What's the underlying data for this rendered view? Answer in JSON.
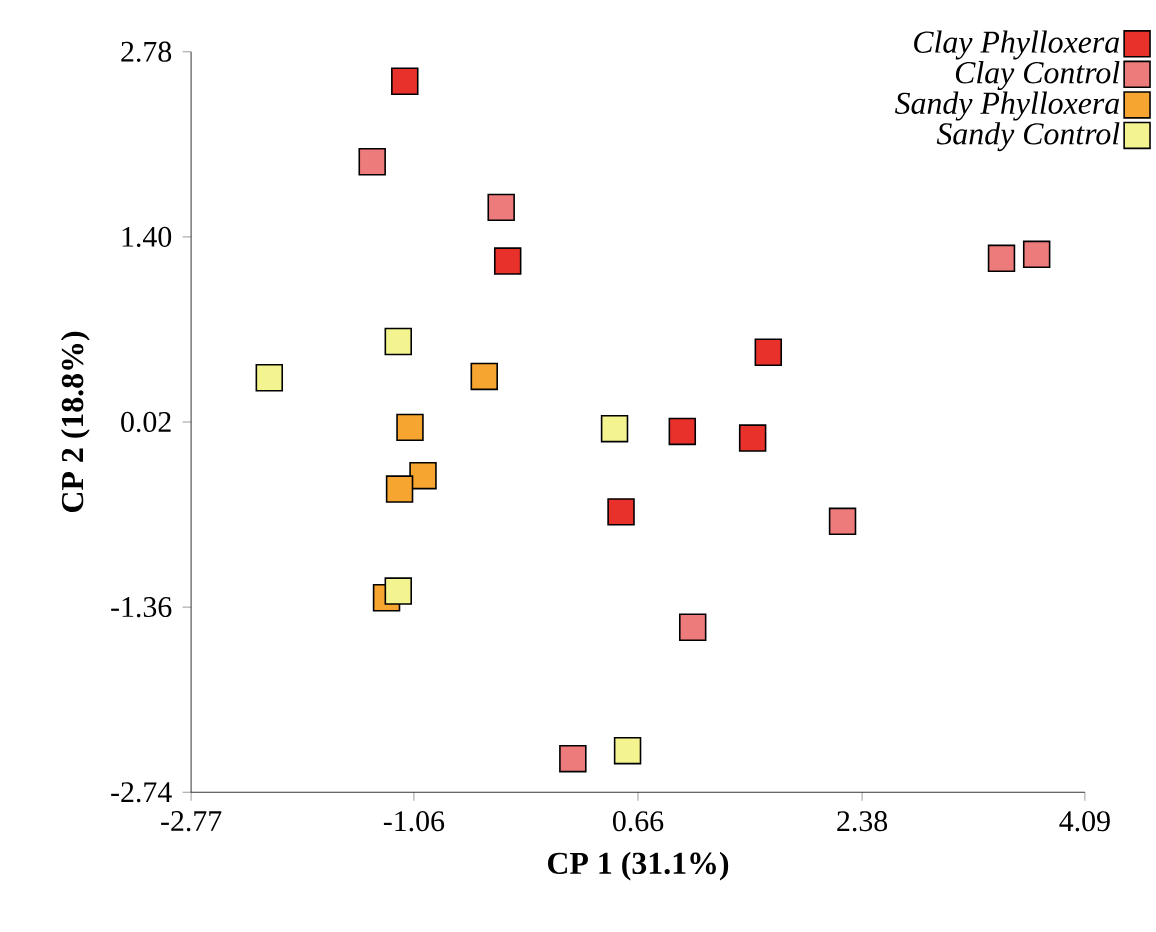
{
  "chart_data": {
    "type": "scatter",
    "xlabel": "CP 1 (31.1%)",
    "ylabel": "CP 2 (18.8%)",
    "xlim": [
      -2.77,
      4.09
    ],
    "ylim": [
      -2.74,
      2.78
    ],
    "xticks": [
      -2.77,
      -1.06,
      0.66,
      2.38,
      4.09
    ],
    "yticks": [
      -2.74,
      -1.36,
      0.02,
      {
        "value": 1.4,
        "label": "1.40"
      },
      2.78
    ],
    "grid": false,
    "legend": "top right",
    "marker": "square",
    "series": [
      {
        "name": "Clay Phylloxera",
        "color": "#e8312b",
        "x": [
          -1.13,
          -0.34,
          1.66,
          1.0,
          1.54,
          0.53
        ],
        "values": [
          2.56,
          1.22,
          0.54,
          -0.05,
          -0.1,
          -0.65
        ]
      },
      {
        "name": "Clay Control",
        "color": "#ee7b7b",
        "x": [
          -1.38,
          -0.39,
          3.45,
          3.72,
          2.23,
          1.08,
          0.16
        ],
        "values": [
          1.96,
          1.62,
          1.24,
          1.27,
          -0.72,
          -1.51,
          -2.49
        ]
      },
      {
        "name": "Sandy Phylloxera",
        "color": "#f7a531",
        "x": [
          -0.52,
          -1.09,
          -0.99,
          -1.17,
          -1.27
        ],
        "values": [
          0.36,
          -0.02,
          -0.38,
          -0.48,
          -1.29
        ]
      },
      {
        "name": "Sandy Control",
        "color": "#f3f38f",
        "x": [
          -2.17,
          -1.18,
          0.48,
          -1.18,
          0.58
        ],
        "values": [
          0.35,
          0.62,
          -0.03,
          -1.24,
          -2.43
        ]
      }
    ]
  }
}
